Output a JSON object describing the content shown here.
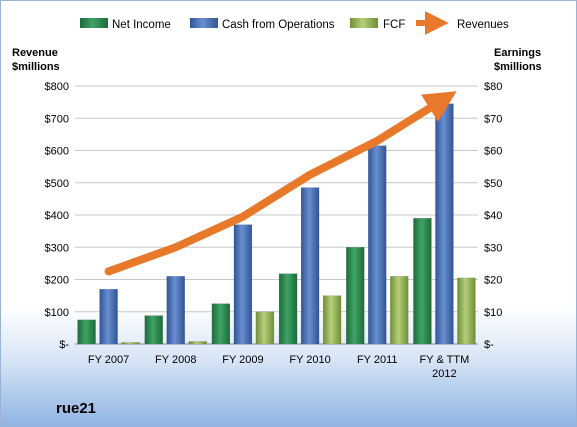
{
  "chart_data": {
    "type": "bar",
    "categories": [
      [
        "FY 2007"
      ],
      [
        "FY 2008"
      ],
      [
        "FY 2009"
      ],
      [
        "FY 2010"
      ],
      [
        "FY 2011"
      ],
      [
        "FY & TTM",
        "2012"
      ]
    ],
    "series": [
      {
        "name": "Net Income",
        "axis": "right",
        "type": "bar",
        "color": "#2e8b4f",
        "values": [
          7.5,
          8.8,
          12.5,
          21.8,
          30,
          39
        ]
      },
      {
        "name": "Cash from Operations",
        "axis": "right",
        "type": "bar",
        "color": "#4b72b8",
        "values": [
          17,
          21,
          37,
          48.5,
          61.5,
          74.5
        ]
      },
      {
        "name": "FCF",
        "axis": "right",
        "type": "bar",
        "color": "#9bbb59",
        "values": [
          0.5,
          0.8,
          10,
          15,
          21,
          20.5
        ]
      },
      {
        "name": "Revenues",
        "axis": "left",
        "type": "line",
        "color": "#e8792b",
        "values": [
          225,
          300,
          395,
          525,
          630,
          760
        ]
      }
    ],
    "left_axis": {
      "title_line1": "Revenue",
      "title_line2": "$millions",
      "ylim": [
        0,
        800
      ],
      "ticks": [
        "$-",
        "$100",
        "$200",
        "$300",
        "$400",
        "$500",
        "$600",
        "$700",
        "$800"
      ]
    },
    "right_axis": {
      "title_line1": "Earnings",
      "title_line2": "$millions",
      "ylim": [
        0,
        80
      ],
      "ticks": [
        "$-",
        "$10",
        "$20",
        "$30",
        "$40",
        "$50",
        "$60",
        "$70",
        "$80"
      ]
    },
    "grid": true,
    "legend_position": "top"
  },
  "company": "rue21"
}
